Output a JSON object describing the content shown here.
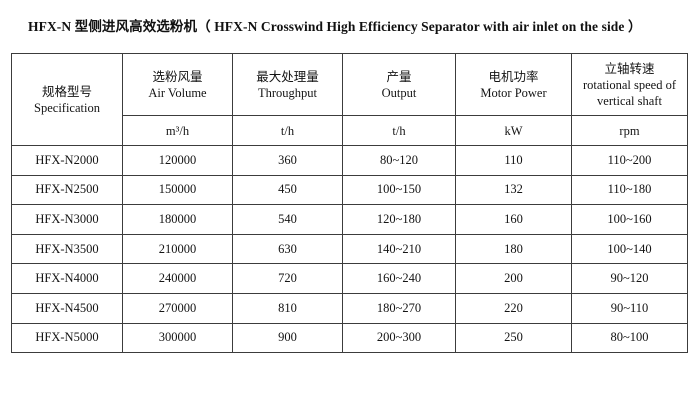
{
  "page": {
    "title": "HFX-N 型侧进风高效选粉机（ HFX-N Crosswind High Efficiency Separator with air inlet on the side ）"
  },
  "table": {
    "columns": [
      {
        "cn": "规格型号",
        "en": "Specification",
        "unit": ""
      },
      {
        "cn": "选粉风量",
        "en": "Air Volume",
        "unit": "m³/h"
      },
      {
        "cn": "最大处理量",
        "en": "Throughput",
        "unit": "t/h"
      },
      {
        "cn": "产量",
        "en": "Output",
        "unit": "t/h"
      },
      {
        "cn": "电机功率",
        "en": "Motor Power",
        "unit": "kW"
      },
      {
        "cn": "立轴转速",
        "en": "rotational speed of vertical shaft",
        "unit": "rpm"
      }
    ],
    "rows": [
      [
        "HFX-N2000",
        "120000",
        "360",
        "80~120",
        "110",
        "110~200"
      ],
      [
        "HFX-N2500",
        "150000",
        "450",
        "100~150",
        "132",
        "110~180"
      ],
      [
        "HFX-N3000",
        "180000",
        "540",
        "120~180",
        "160",
        "100~160"
      ],
      [
        "HFX-N3500",
        "210000",
        "630",
        "140~210",
        "180",
        "100~140"
      ],
      [
        "HFX-N4000",
        "240000",
        "720",
        "160~240",
        "200",
        "90~120"
      ],
      [
        "HFX-N4500",
        "270000",
        "810",
        "180~270",
        "220",
        "90~110"
      ],
      [
        "HFX-N5000",
        "300000",
        "900",
        "200~300",
        "250",
        "80~100"
      ]
    ]
  }
}
